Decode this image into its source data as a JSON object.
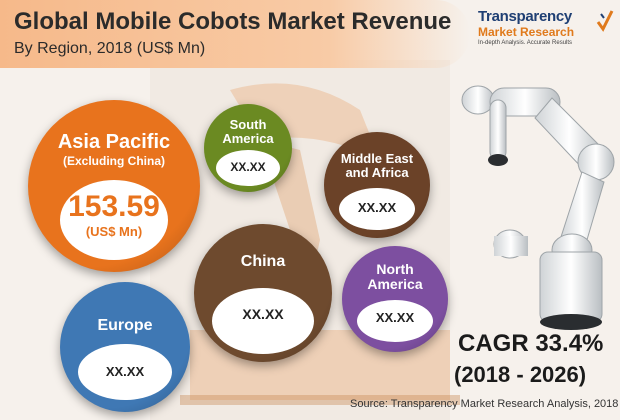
{
  "title": "Global Mobile Cobots Market Revenue",
  "subtitle": "By Region, 2018 (US$ Mn)",
  "logo": {
    "line1": "Transparency",
    "line2": "Market Research",
    "line3": "In-depth Analysis. Accurate Results",
    "brand_blue": "#1f3f73",
    "brand_orange": "#e07a1c"
  },
  "chart_data": {
    "type": "bubble",
    "title": "Global Mobile Cobots Market Revenue",
    "subtitle": "By Region, 2018 (US$ Mn)",
    "categories": [
      "Asia Pacific (Excluding China)",
      "South America",
      "Middle East and Africa",
      "China",
      "North America",
      "Europe"
    ],
    "values": [
      153.59,
      null,
      null,
      null,
      null,
      null
    ],
    "regions": [
      {
        "name_lines": [
          "Asia Pacific",
          "(Excluding China)"
        ],
        "value_label": "153.59",
        "unit_label": "(US$ Mn)",
        "value": 153.59,
        "color": "#e8731d"
      },
      {
        "name_lines": [
          "South",
          "America"
        ],
        "value_label": "XX.XX",
        "value": null,
        "color": "#6b8a22"
      },
      {
        "name_lines": [
          "Middle East",
          "and Africa"
        ],
        "value_label": "XX.XX",
        "value": null,
        "color": "#6b4228"
      },
      {
        "name_lines": [
          "China"
        ],
        "value_label": "XX.XX",
        "value": null,
        "color": "#6e4a2e"
      },
      {
        "name_lines": [
          "North",
          "America"
        ],
        "value_label": "XX.XX",
        "value": null,
        "color": "#7d4fa0"
      },
      {
        "name_lines": [
          "Europe"
        ],
        "value_label": "XX.XX",
        "value": null,
        "color": "#3f78b4"
      }
    ]
  },
  "cagr": {
    "label": "CAGR 33.4%",
    "years": "(2018 - 2026)"
  },
  "source": "Source: Transparency Market Research Analysis, 2018"
}
